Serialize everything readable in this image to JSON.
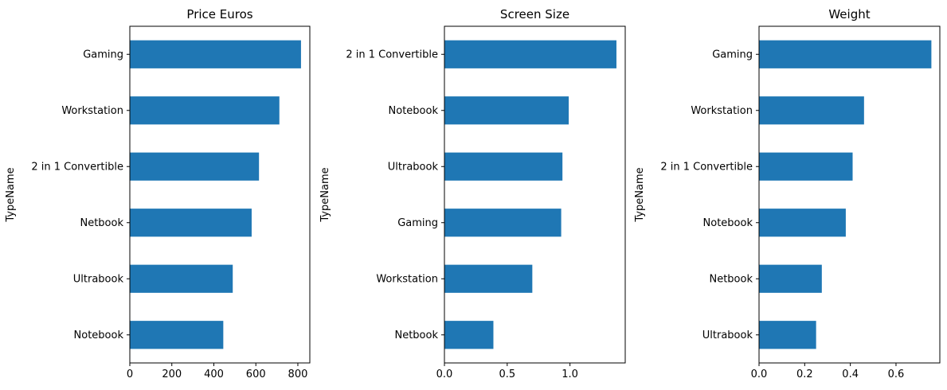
{
  "chart_data": [
    {
      "type": "bar",
      "orientation": "horizontal",
      "title": "Price Euros",
      "xlabel": "",
      "ylabel": "TypeName",
      "categories": [
        "Notebook",
        "Ultrabook",
        "Netbook",
        "2 in 1 Convertible",
        "Workstation",
        "Gaming"
      ],
      "values": [
        445,
        490,
        580,
        615,
        712,
        815
      ],
      "xlim": [
        0,
        857
      ],
      "xticks": [
        0,
        200,
        400,
        600,
        800
      ],
      "xtick_labels": [
        "0",
        "200",
        "400",
        "600",
        "800"
      ],
      "grid": false,
      "legend": "none",
      "color": "#1f77b4"
    },
    {
      "type": "bar",
      "orientation": "horizontal",
      "title": "Screen Size",
      "xlabel": "",
      "ylabel": "TypeName",
      "categories": [
        "Netbook",
        "Workstation",
        "Gaming",
        "Ultrabook",
        "Notebook",
        "2 in 1 Convertible"
      ],
      "values": [
        0.39,
        0.7,
        0.93,
        0.94,
        0.99,
        1.37
      ],
      "xlim": [
        0,
        1.44
      ],
      "xticks": [
        0,
        0.5,
        1
      ],
      "xtick_labels": [
        "0.0",
        "0.5",
        "1.0"
      ],
      "grid": false,
      "legend": "none",
      "color": "#1f77b4"
    },
    {
      "type": "bar",
      "orientation": "horizontal",
      "title": "Weight",
      "xlabel": "",
      "ylabel": "TypeName",
      "categories": [
        "Ultrabook",
        "Netbook",
        "Notebook",
        "2 in 1 Convertible",
        "Workstation",
        "Gaming"
      ],
      "values": [
        0.25,
        0.275,
        0.38,
        0.41,
        0.46,
        0.755
      ],
      "xlim": [
        0,
        0.792
      ],
      "xticks": [
        0,
        0.2,
        0.4,
        0.6
      ],
      "xtick_labels": [
        "0.0",
        "0.2",
        "0.4",
        "0.6"
      ],
      "grid": false,
      "legend": "none",
      "color": "#1f77b4"
    }
  ]
}
